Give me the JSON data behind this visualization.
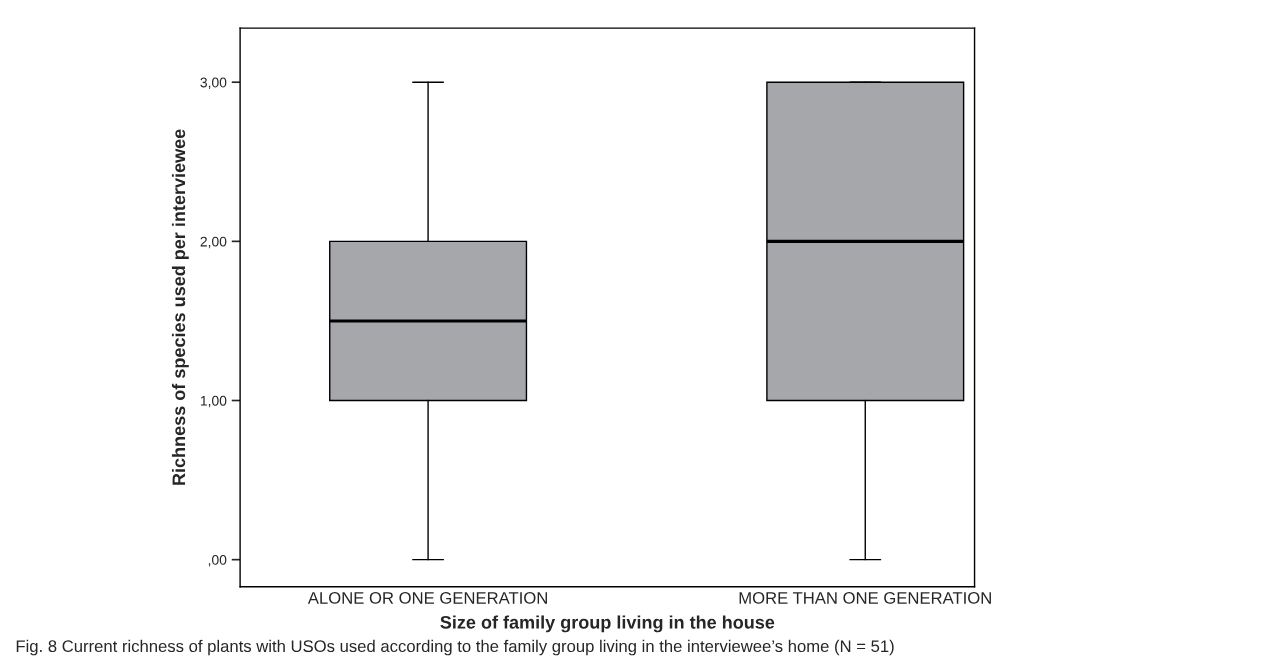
{
  "chart_data": {
    "type": "box",
    "xlabel": "Size of family group living in the house",
    "ylabel": "Richness of species used per interviewee",
    "categories": [
      "ALONE OR ONE GENERATION",
      "MORE THAN ONE GENERATION"
    ],
    "boxes": [
      {
        "low": 0,
        "q1": 1,
        "median": 1.5,
        "q3": 2,
        "high": 3
      },
      {
        "low": 0,
        "q1": 1,
        "median": 2,
        "q3": 3,
        "high": 3
      }
    ],
    "color": "#a6a7ab",
    "ylim": [
      -0.17,
      3.34
    ],
    "yticks": [
      {
        "value": 0,
        "label": ",00"
      },
      {
        "value": 1,
        "label": "1,00"
      },
      {
        "value": 2,
        "label": "2,00"
      },
      {
        "value": 3,
        "label": "3,00"
      }
    ],
    "grid": false,
    "annotations": [
      "Fig. 8 Current richness of plants with USOs used according to the family group living in the interviewee’s home (N = 51)"
    ]
  }
}
